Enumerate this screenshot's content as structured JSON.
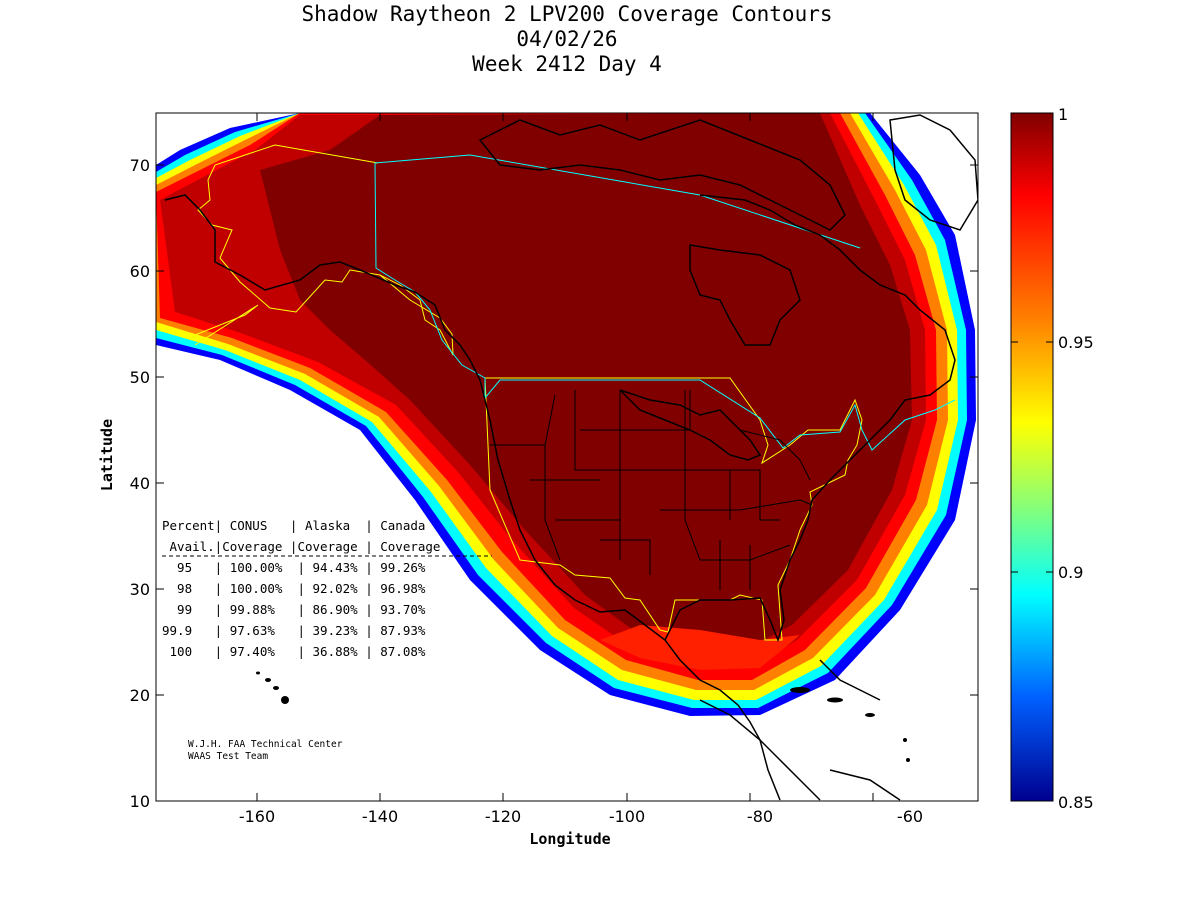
{
  "title": {
    "line1": "Shadow Raytheon 2 LPV200 Coverage Contours",
    "line2": "04/02/26",
    "line3": "Week 2412 Day 4"
  },
  "axes": {
    "xlabel": "Longitude",
    "ylabel": "Latitude",
    "xticks": [
      "-160",
      "-140",
      "-120",
      "-100",
      "-80",
      "-60"
    ],
    "yticks": [
      "70",
      "60",
      "50",
      "40",
      "30",
      "20",
      "10"
    ]
  },
  "colorbar": {
    "ticks": [
      "1",
      "0.95",
      "0.9",
      "0.85"
    ],
    "colors": {
      "top": "#800000",
      "r1": "#ff0000",
      "orange": "#ff8000",
      "yellow": "#ffff00",
      "cyan": "#00ffff",
      "blue": "#0000ff",
      "bottom": "#00008f"
    }
  },
  "table": {
    "header1": "Percent| CONUS   | Alaska  | Canada",
    "header2": " Avail.|Coverage |Coverage | Coverage",
    "rows": [
      "  95   | 100.00%  | 94.43% | 99.26%",
      "  98   | 100.00%  | 92.02% | 96.98%",
      "  99   | 99.88%   | 86.90% | 93.70%",
      "99.9   | 97.63%   | 39.23% | 87.93%",
      " 100   | 97.40%   | 36.88% | 87.08%"
    ]
  },
  "credit": {
    "line1": "W.J.H. FAA Technical Center",
    "line2": "WAAS Test Team"
  },
  "colors": {
    "coverage_core": "#800000",
    "coverage_mid": "#b00000",
    "coverage_red": "#ff0000",
    "boundary_yellow": "#ffff00",
    "boundary_cyan": "#00ffff",
    "coast": "#000000"
  }
}
